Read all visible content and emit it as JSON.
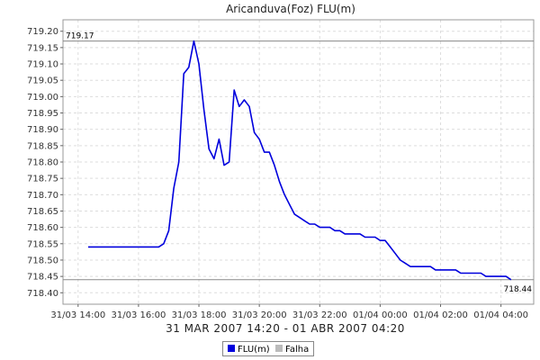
{
  "chart_data": {
    "type": "line",
    "title": "Aricanduva(Foz) FLU(m)",
    "subtitle": "31 MAR 2007 14:20 - 01 ABR 2007 04:20",
    "ylim": [
      718.365,
      719.235
    ],
    "xlim": [
      "31/03 13:30",
      "01/04 05:05"
    ],
    "grid": true,
    "y_ticks": [
      "719.20",
      "719.15",
      "719.10",
      "719.05",
      "719.00",
      "718.95",
      "718.90",
      "718.85",
      "718.80",
      "718.75",
      "718.70",
      "718.65",
      "718.60",
      "718.55",
      "718.50",
      "718.45",
      "718.40"
    ],
    "x_ticks": [
      "31/03 14:00",
      "31/03 16:00",
      "31/03 18:00",
      "31/03 20:00",
      "31/03 22:00",
      "01/04 00:00",
      "01/04 02:00",
      "01/04 04:00"
    ],
    "reference_lines": [
      {
        "label": "719.17",
        "value": 719.17
      },
      {
        "label": "718.44",
        "value": 718.44
      }
    ],
    "legend": [
      "FLU(m)",
      "Falha"
    ],
    "legend_position": "bottom-center",
    "colors": {
      "series": "#0000dd",
      "falha": "#bbbbbb",
      "ref_line": "#888888",
      "grid": "#dddddd"
    },
    "series": [
      {
        "name": "FLU(m)",
        "points": [
          [
            "31/03 14:20",
            718.54
          ],
          [
            "31/03 15:00",
            718.54
          ],
          [
            "31/03 16:00",
            718.54
          ],
          [
            "31/03 16:40",
            718.54
          ],
          [
            "31/03 16:50",
            718.55
          ],
          [
            "31/03 17:00",
            718.59
          ],
          [
            "31/03 17:10",
            718.72
          ],
          [
            "31/03 17:20",
            718.8
          ],
          [
            "31/03 17:30",
            719.07
          ],
          [
            "31/03 17:40",
            719.09
          ],
          [
            "31/03 17:50",
            719.17
          ],
          [
            "31/03 18:00",
            719.1
          ],
          [
            "31/03 18:10",
            718.96
          ],
          [
            "31/03 18:20",
            718.84
          ],
          [
            "31/03 18:30",
            718.81
          ],
          [
            "31/03 18:40",
            718.87
          ],
          [
            "31/03 18:50",
            718.79
          ],
          [
            "31/03 19:00",
            718.8
          ],
          [
            "31/03 19:10",
            719.02
          ],
          [
            "31/03 19:20",
            718.97
          ],
          [
            "31/03 19:30",
            718.99
          ],
          [
            "31/03 19:40",
            718.97
          ],
          [
            "31/03 19:50",
            718.89
          ],
          [
            "31/03 20:00",
            718.87
          ],
          [
            "31/03 20:10",
            718.83
          ],
          [
            "31/03 20:20",
            718.83
          ],
          [
            "31/03 20:30",
            718.79
          ],
          [
            "31/03 20:40",
            718.74
          ],
          [
            "31/03 20:50",
            718.7
          ],
          [
            "31/03 21:00",
            718.67
          ],
          [
            "31/03 21:10",
            718.64
          ],
          [
            "31/03 21:20",
            718.63
          ],
          [
            "31/03 21:30",
            718.62
          ],
          [
            "31/03 21:40",
            718.61
          ],
          [
            "31/03 21:50",
            718.61
          ],
          [
            "31/03 22:00",
            718.6
          ],
          [
            "31/03 22:10",
            718.6
          ],
          [
            "31/03 22:20",
            718.6
          ],
          [
            "31/03 22:30",
            718.59
          ],
          [
            "31/03 22:40",
            718.59
          ],
          [
            "31/03 22:50",
            718.58
          ],
          [
            "31/03 23:00",
            718.58
          ],
          [
            "31/03 23:10",
            718.58
          ],
          [
            "31/03 23:20",
            718.58
          ],
          [
            "31/03 23:30",
            718.57
          ],
          [
            "31/03 23:40",
            718.57
          ],
          [
            "31/03 23:50",
            718.57
          ],
          [
            "01/04 00:00",
            718.56
          ],
          [
            "01/04 00:10",
            718.56
          ],
          [
            "01/04 00:20",
            718.54
          ],
          [
            "01/04 00:30",
            718.52
          ],
          [
            "01/04 00:40",
            718.5
          ],
          [
            "01/04 00:50",
            718.49
          ],
          [
            "01/04 01:00",
            718.48
          ],
          [
            "01/04 01:20",
            718.48
          ],
          [
            "01/04 01:40",
            718.48
          ],
          [
            "01/04 01:50",
            718.47
          ],
          [
            "01/04 02:10",
            718.47
          ],
          [
            "01/04 02:30",
            718.47
          ],
          [
            "01/04 02:40",
            718.46
          ],
          [
            "01/04 03:00",
            718.46
          ],
          [
            "01/04 03:20",
            718.46
          ],
          [
            "01/04 03:30",
            718.45
          ],
          [
            "01/04 03:50",
            718.45
          ],
          [
            "01/04 04:10",
            718.45
          ],
          [
            "01/04 04:20",
            718.44
          ]
        ]
      }
    ]
  }
}
